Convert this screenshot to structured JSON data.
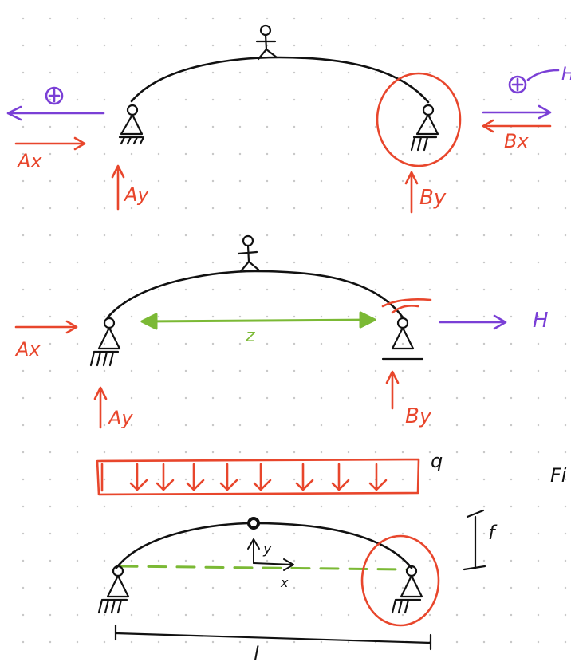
{
  "colors": {
    "ink": "#111111",
    "reaction": "#e8462c",
    "load": "#7a3fd6",
    "dimension": "#7bb935",
    "grid_dots": "#c9c9c9"
  },
  "diagram1": {
    "force_left_label": "Ax",
    "force_left_reaction": "Ay",
    "force_right_label": "Bx",
    "force_right_reaction": "By",
    "unknown_mark": "H",
    "symbol": "⊕"
  },
  "diagram2": {
    "force_left_label": "Ax",
    "force_left_reaction": "Ay",
    "force_right_reaction": "By",
    "load_label": "H",
    "span_label": "z"
  },
  "diagram3": {
    "load_label": "q",
    "side_text": "Fi",
    "rise_label": "f",
    "span_label": "l",
    "axis_y": "y",
    "axis_x": "x"
  }
}
